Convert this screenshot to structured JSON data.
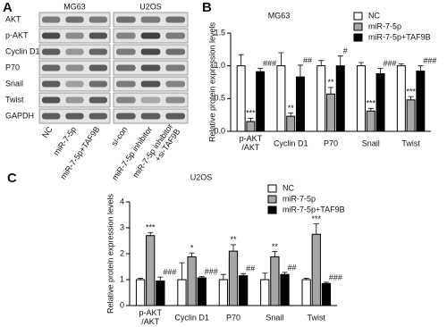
{
  "blot": {
    "panel": "A",
    "groups": [
      "MG63",
      "U2OS"
    ],
    "rows": [
      "AKT",
      "p-AKT",
      "Cyclin D1",
      "P70",
      "Snail",
      "Twist",
      "GAPDH"
    ],
    "columns": [
      "NC",
      "miR-7-5p",
      "miR-7-5p+TAF9B",
      "si-con",
      "miR-7-5p inhibitor",
      "miR-7-5p inhibitor\n+si-TAF9B"
    ]
  },
  "chart_data": [
    {
      "type": "bar",
      "panel": "B",
      "title": "MG63",
      "ylabel": "Relative protein expression levels",
      "categories": [
        "p-AKT\n/AKT",
        "Cyclin D1",
        "P70",
        "Snail",
        "Twist"
      ],
      "ylim": [
        0,
        1.5
      ],
      "yticks": [
        {
          "value": 0,
          "label": "0.0"
        },
        {
          "value": 0.5,
          "label": "0.5"
        },
        {
          "value": 1,
          "label": "1.0"
        },
        {
          "value": 1.5,
          "label": "1.5"
        }
      ],
      "series": [
        {
          "name": "NC",
          "color": "#ffffff",
          "values": [
            1.0,
            1.0,
            1.0,
            1.0,
            1.0
          ],
          "errors": [
            0.17,
            0.2,
            0.08,
            0.05,
            0.03
          ]
        },
        {
          "name": "miR-7-5p",
          "color": "#a6a6a6",
          "values": [
            0.15,
            0.23,
            0.57,
            0.31,
            0.48
          ],
          "errors": [
            0.05,
            0.05,
            0.1,
            0.04,
            0.05
          ],
          "annotations": [
            "***",
            "**",
            "**",
            "***",
            "***"
          ]
        },
        {
          "name": "miR-7-5p+TAF9B",
          "color": "#000000",
          "values": [
            0.91,
            0.83,
            1.0,
            0.88,
            0.92
          ],
          "errors": [
            0.05,
            0.18,
            0.15,
            0.08,
            0.08
          ],
          "annotations": [
            "###",
            "##",
            "#",
            "###",
            "###"
          ]
        }
      ]
    },
    {
      "type": "bar",
      "panel": "C",
      "title": "U2OS",
      "ylabel": "Relative protein expression levels",
      "categories": [
        "p-AKT\n/AKT",
        "Cyclin D1",
        "P70",
        "Snail",
        "Twist"
      ],
      "ylim": [
        0,
        4
      ],
      "yticks": [
        0,
        1,
        2,
        3,
        4
      ],
      "series": [
        {
          "name": "NC",
          "color": "#ffffff",
          "values": [
            1,
            1,
            1,
            1,
            1
          ],
          "errors": [
            0.05,
            0.65,
            0.2,
            0.25,
            0.05
          ]
        },
        {
          "name": "miR-7-5p",
          "color": "#a6a6a6",
          "values": [
            2.7,
            1.88,
            2.1,
            1.88,
            2.75
          ],
          "errors": [
            0.12,
            0.15,
            0.25,
            0.2,
            0.4
          ],
          "annotations": [
            "***",
            "*",
            "**",
            "**",
            "***"
          ]
        },
        {
          "name": "miR-7-5p+TAF9B",
          "color": "#000000",
          "values": [
            0.95,
            1.07,
            1.15,
            1.2,
            0.85
          ],
          "errors": [
            0.15,
            0.05,
            0.08,
            0.08,
            0.05
          ],
          "annotations": [
            "###",
            "###",
            "##",
            "##",
            "###"
          ]
        }
      ]
    }
  ]
}
